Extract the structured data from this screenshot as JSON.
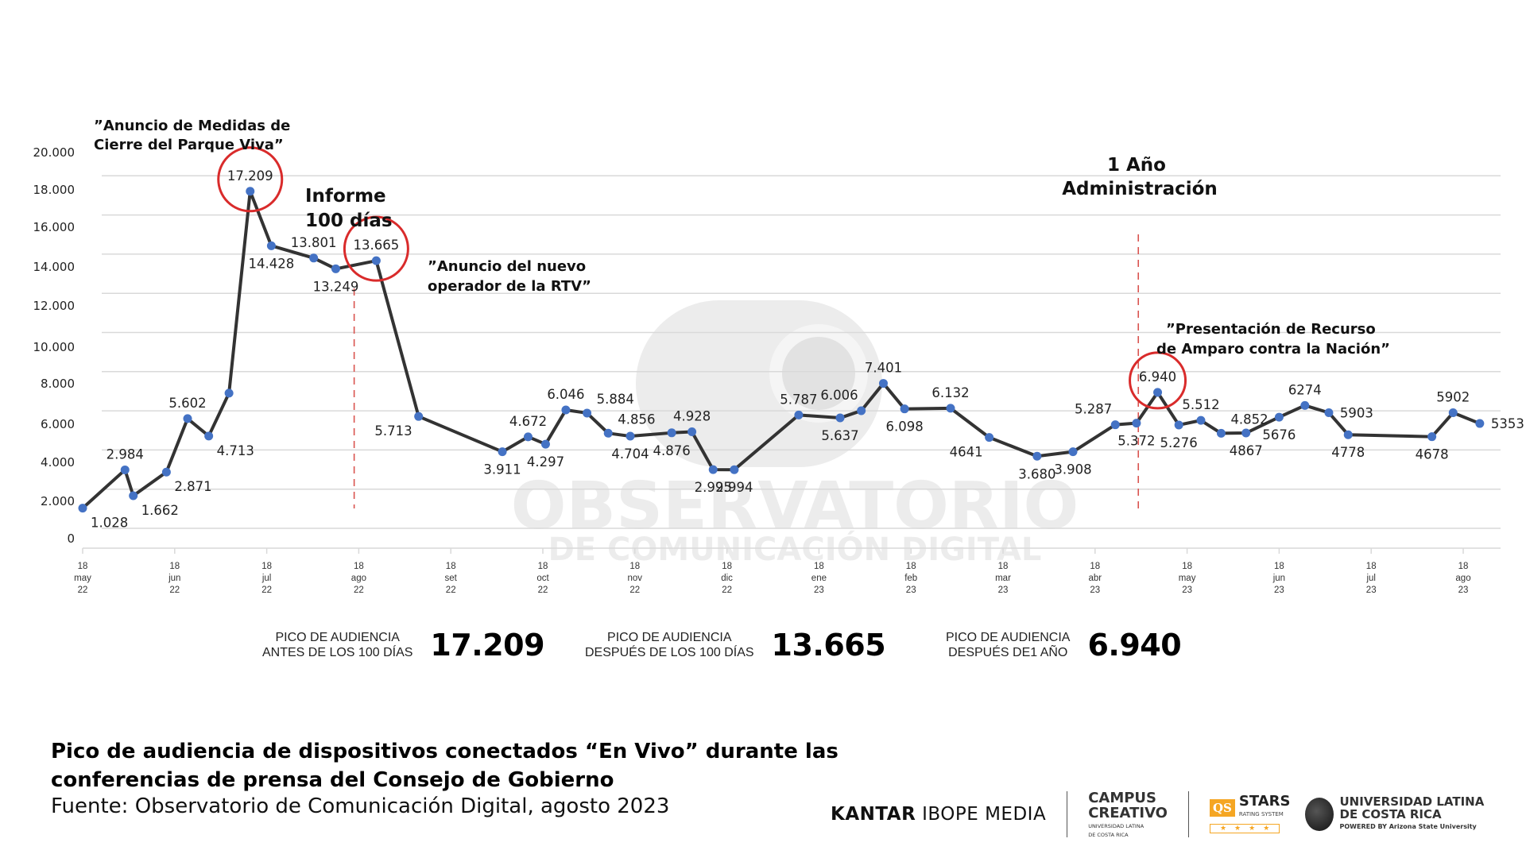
{
  "chart_data": {
    "type": "line",
    "title": "Pico de audiencia de dispositivos conectados “En Vivo” durante las conferencias de prensa del Consejo de Gobierno",
    "xlabel": "",
    "ylabel": "",
    "ylim": [
      0,
      20000
    ],
    "grid": true,
    "legend": "none",
    "y_ticks": [
      "20.000",
      "18.000",
      "16.000",
      "14.000",
      "12.000",
      "10.000",
      "8.000",
      "6.000",
      "4.000",
      "2.000",
      "0"
    ],
    "x_ticks": [
      {
        "day": "18",
        "month": "may",
        "year": "22"
      },
      {
        "day": "18",
        "month": "jun",
        "year": "22"
      },
      {
        "day": "18",
        "month": "jul",
        "year": "22"
      },
      {
        "day": "18",
        "month": "ago",
        "year": "22"
      },
      {
        "day": "18",
        "month": "set",
        "year": "22"
      },
      {
        "day": "18",
        "month": "oct",
        "year": "22"
      },
      {
        "day": "18",
        "month": "nov",
        "year": "22"
      },
      {
        "day": "18",
        "month": "dic",
        "year": "22"
      },
      {
        "day": "18",
        "month": "ene",
        "year": "23"
      },
      {
        "day": "18",
        "month": "feb",
        "year": "23"
      },
      {
        "day": "18",
        "month": "mar",
        "year": "23"
      },
      {
        "day": "18",
        "month": "abr",
        "year": "23"
      },
      {
        "day": "18",
        "month": "may",
        "year": "23"
      },
      {
        "day": "18",
        "month": "jun",
        "year": "23"
      },
      {
        "day": "18",
        "month": "jul",
        "year": "23"
      },
      {
        "day": "18",
        "month": "ago",
        "year": "23"
      }
    ],
    "series": [
      {
        "name": "Pico de audiencia",
        "color": "#333333",
        "marker_color": "#4472c4",
        "points": [
          {
            "x": 0.0,
            "value": 1028,
            "label": "1.028",
            "lpos": "br"
          },
          {
            "x": 0.46,
            "value": 2984,
            "label": "2.984",
            "lpos": "t"
          },
          {
            "x": 0.55,
            "value": 1662,
            "label": "1.662",
            "lpos": "br"
          },
          {
            "x": 0.91,
            "value": 2871,
            "label": "2.871",
            "lpos": "br"
          },
          {
            "x": 1.14,
            "value": 5602,
            "label": "5.602",
            "lpos": "t"
          },
          {
            "x": 1.37,
            "value": 4713,
            "label": "4.713",
            "lpos": "br"
          },
          {
            "x": 1.59,
            "value": 6900,
            "label": "",
            "lpos": "none"
          },
          {
            "x": 1.82,
            "value": 17209,
            "label": "17.209",
            "lpos": "t"
          },
          {
            "x": 2.05,
            "value": 14428,
            "label": "14.428",
            "lpos": "b"
          },
          {
            "x": 2.51,
            "value": 13801,
            "label": "13.801",
            "lpos": "t"
          },
          {
            "x": 2.75,
            "value": 13249,
            "label": "13.249",
            "lpos": "b"
          },
          {
            "x": 3.19,
            "value": 13665,
            "label": "13.665",
            "lpos": "t"
          },
          {
            "x": 3.65,
            "value": 5713,
            "label": "5.713",
            "lpos": "bl"
          },
          {
            "x": 4.56,
            "value": 3911,
            "label": "3.911",
            "lpos": "b"
          },
          {
            "x": 4.84,
            "value": 4672,
            "label": "4.672",
            "lpos": "t"
          },
          {
            "x": 5.03,
            "value": 4297,
            "label": "4.297",
            "lpos": "b"
          },
          {
            "x": 5.25,
            "value": 6046,
            "label": "6.046",
            "lpos": "t"
          },
          {
            "x": 5.48,
            "value": 5884,
            "label": "5.884",
            "lpos": "tr"
          },
          {
            "x": 5.71,
            "value": 4856,
            "label": "4.856",
            "lpos": "tr"
          },
          {
            "x": 5.95,
            "value": 4704,
            "label": "4.704",
            "lpos": "b"
          },
          {
            "x": 6.4,
            "value": 4876,
            "label": "4.876",
            "lpos": "b"
          },
          {
            "x": 6.62,
            "value": 4928,
            "label": "4.928",
            "lpos": "t"
          },
          {
            "x": 6.85,
            "value": 2995,
            "label": "2.995",
            "lpos": "b"
          },
          {
            "x": 7.08,
            "value": 2994,
            "label": "2.994",
            "lpos": "b"
          },
          {
            "x": 7.78,
            "value": 5787,
            "label": "5.787",
            "lpos": "t"
          },
          {
            "x": 8.23,
            "value": 5637,
            "label": "5.637",
            "lpos": "b"
          },
          {
            "x": 8.46,
            "value": 6006,
            "label": "6.006",
            "lpos": "tl"
          },
          {
            "x": 8.7,
            "value": 7401,
            "label": "7.401",
            "lpos": "t"
          },
          {
            "x": 8.93,
            "value": 6098,
            "label": "6.098",
            "lpos": "b"
          },
          {
            "x": 9.43,
            "value": 6132,
            "label": "6.132",
            "lpos": "t"
          },
          {
            "x": 9.85,
            "value": 4641,
            "label": "4641",
            "lpos": "bl"
          },
          {
            "x": 10.37,
            "value": 3680,
            "label": "3.680",
            "lpos": "b"
          },
          {
            "x": 10.76,
            "value": 3908,
            "label": "3.908",
            "lpos": "b"
          },
          {
            "x": 11.22,
            "value": 5287,
            "label": "5.287",
            "lpos": "tl"
          },
          {
            "x": 11.45,
            "value": 5372,
            "label": "5.372",
            "lpos": "b"
          },
          {
            "x": 11.68,
            "value": 6940,
            "label": "6.940",
            "lpos": "t"
          },
          {
            "x": 11.91,
            "value": 5276,
            "label": "5.276",
            "lpos": "b"
          },
          {
            "x": 12.15,
            "value": 5512,
            "label": "5.512",
            "lpos": "t"
          },
          {
            "x": 12.37,
            "value": 4852,
            "label": "4.852",
            "lpos": "tr"
          },
          {
            "x": 12.64,
            "value": 4867,
            "label": "4867",
            "lpos": "b"
          },
          {
            "x": 13.0,
            "value": 5676,
            "label": "5676",
            "lpos": "b"
          },
          {
            "x": 13.28,
            "value": 6274,
            "label": "6274",
            "lpos": "t"
          },
          {
            "x": 13.54,
            "value": 5903,
            "label": "5903",
            "lpos": "r"
          },
          {
            "x": 13.75,
            "value": 4778,
            "label": "4778",
            "lpos": "b"
          },
          {
            "x": 14.66,
            "value": 4678,
            "label": "4678",
            "lpos": "b"
          },
          {
            "x": 14.89,
            "value": 5902,
            "label": "5902",
            "lpos": "t"
          },
          {
            "x": 15.18,
            "value": 5353,
            "label": "5353",
            "lpos": "r"
          }
        ]
      }
    ],
    "highlight_circles": [
      {
        "point_index": 7,
        "label": "17.209"
      },
      {
        "point_index": 11,
        "label": "13.665"
      },
      {
        "point_index": 35,
        "label": "6.940"
      }
    ],
    "reference_lines": [
      {
        "x": 2.95,
        "style": "dashed",
        "color": "#d9534f",
        "label": "Informe 100 días"
      },
      {
        "x": 11.47,
        "style": "dashed",
        "color": "#d9534f",
        "label": "1 Año Administración"
      }
    ],
    "annotations": [
      {
        "text_lines": [
          "”Anuncio de Medidas de",
          "Cierre del Parque Viva”"
        ]
      },
      {
        "text_lines": [
          "Informe",
          "100 días"
        ]
      },
      {
        "text_lines": [
          "”Anuncio del nuevo",
          "operador de la RTV”"
        ]
      },
      {
        "text_lines": [
          "1 Año",
          "Administración"
        ]
      },
      {
        "text_lines": [
          "”Presentación de Recurso",
          "de Amparo contra la Nación”"
        ]
      }
    ]
  },
  "summary": [
    {
      "label_line1": "PICO DE AUDIENCIA",
      "label_line2": "ANTES DE LOS 100 DÍAS",
      "value": "17.209"
    },
    {
      "label_line1": "PICO DE AUDIENCIA",
      "label_line2": "DESPUÉS DE LOS 100 DÍAS",
      "value": "13.665"
    },
    {
      "label_line1": "PICO DE AUDIENCIA",
      "label_line2": "DESPUÉS DE1 AÑO",
      "value": "6.940"
    }
  ],
  "watermark": {
    "line1": "OBSERVATORIO",
    "line2": "DE COMUNICACIÓN DIGITAL"
  },
  "footer": {
    "title_line1": "Pico de audiencia de dispositivos conectados “En Vivo” durante las",
    "title_line2": "conferencias de prensa del Consejo de Gobierno",
    "source": "Fuente: Observatorio de Comunicación Digital, agosto 2023"
  },
  "logos": {
    "kantar_bold": "KANTAR",
    "kantar_light": "IBOPE MEDIA",
    "campus_line1": "CAMPUS",
    "campus_line2": "CREATIVO",
    "campus_sub1": "UNIVERSIDAD LATINA",
    "campus_sub2": "DE COSTA RICA",
    "qs_box": "QS",
    "qs_stars": "STARS",
    "qs_sub": "RATING SYSTEM",
    "qs_rating": "★★★★",
    "ulatina_line1": "UNIVERSIDAD LATINA",
    "ulatina_line2": "DE COSTA RICA",
    "ulatina_powered": "POWERED BY Arizona State University"
  },
  "colors": {
    "line": "#333333",
    "marker": "#4472c4",
    "highlight": "#d92b2b",
    "grid": "#d9d9d9",
    "refline": "#d9534f",
    "watermark": "#ececec"
  }
}
